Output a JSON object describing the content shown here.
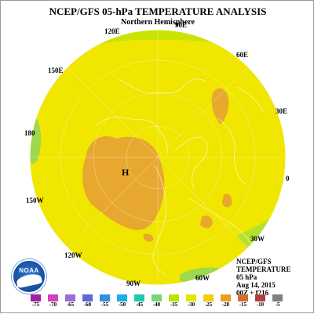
{
  "title": "NCEP/GFS 05-hPa TEMPERATURE ANALYSIS",
  "subtitle": "Northern Hemisphere",
  "longitude_labels": {
    "l120e": "120E",
    "l90e": "90E",
    "l60e": "60E",
    "l150e": "150E",
    "l30e": "30E",
    "l180": "180",
    "l0": "0",
    "l150w": "150W",
    "l30w": "30W",
    "l120w": "120W",
    "l60w": "60W",
    "l90w": "90W"
  },
  "high_marker": "H",
  "info": {
    "line1": "NCEP/GFS",
    "line2": "TEMPERATURE",
    "line3": "05 hPa",
    "line4": "Aug 14, 2015",
    "line5": "00Z + f216"
  },
  "logo_text": "NOAA",
  "color_scale": {
    "labels": [
      "-75",
      "-70",
      "-65",
      "-60",
      "-55",
      "-50",
      "-45",
      "-40",
      "-35",
      "-30",
      "-25",
      "-20",
      "-15",
      "-10",
      "-5"
    ],
    "colors": [
      "#a020a0",
      "#d040c0",
      "#9b6ddb",
      "#5a6bd8",
      "#2f8fe0",
      "#1cb0e8",
      "#20c8b0",
      "#78d878",
      "#b8e400",
      "#e0e800",
      "#f4d000",
      "#e8a020",
      "#d07030",
      "#b04040",
      "#808080"
    ]
  },
  "field_colors": {
    "warm_yellow": "#f4e400",
    "green_yellow": "#c8e400",
    "orange": "#e8a830",
    "green": "#9ed84c"
  }
}
